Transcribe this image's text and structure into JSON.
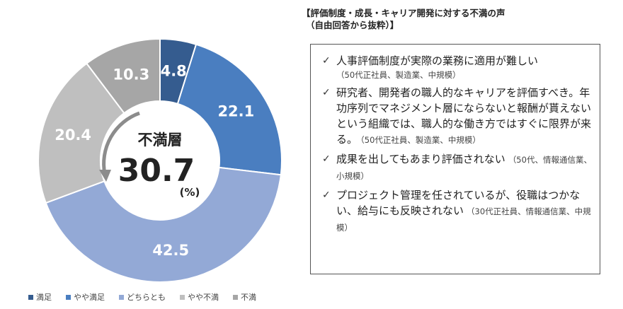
{
  "chart_data": {
    "type": "pie",
    "categories": [
      "満足",
      "やや満足",
      "どちらとも",
      "やや不満",
      "不満"
    ],
    "values": [
      4.8,
      22.1,
      42.5,
      20.4,
      10.3
    ],
    "colors": [
      "#355c8f",
      "#4a7ec0",
      "#93a9d6",
      "#bfbfbf",
      "#a6a6a6"
    ],
    "donut": true,
    "center_label": "不満層",
    "center_value": "30.7",
    "center_unit": "(%)",
    "legend_position": "bottom"
  },
  "panel": {
    "title_line1": "【評価制度・成長・キャリア開発に対する不満の声",
    "title_line2": "（自由回答から抜粋）】",
    "items": [
      {
        "text": "人事評価制度が実際の業務に適用が難しい",
        "source": "（50代正社員、製造業、中規模）"
      },
      {
        "text": "研究者、開発者の職人的なキャリアを評価すべき。年功序列でマネジメント層にならないと報酬が貰えないという組織では、職人的な働き方ではすぐに限界が来る。",
        "source": "（50代正社員、製造業、中規模）"
      },
      {
        "text": "成果を出してもあまり評価されない",
        "source": "（50代、情報通信業、小規模）"
      },
      {
        "text": "プロジェクト管理を任されているが、役職はつかない、給与にも反映されない",
        "source": "（30代正社員、情報通信業、中規模）"
      }
    ],
    "check_icon": "check-icon"
  }
}
